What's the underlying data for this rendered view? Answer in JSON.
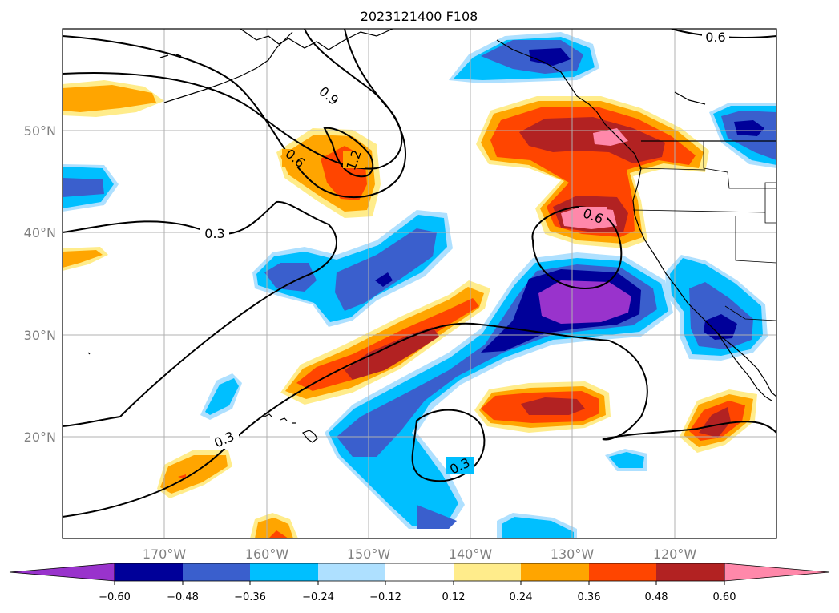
{
  "map": {
    "title": "2023121400 F108",
    "lat_labels": [
      "50°N",
      "40°N",
      "30°N",
      "20°N"
    ],
    "lon_labels": [
      "170°W",
      "160°W",
      "150°W",
      "140°W",
      "130°W",
      "120°W"
    ],
    "contour_labels": [
      "0.9",
      "1.2",
      "0.6",
      "0.3",
      "0.6",
      "0.3",
      "0.3",
      "0.6"
    ],
    "colors": {
      "neg_060": "#9933cc",
      "neg_048": "#000099",
      "neg_036": "#3a5fcd",
      "neg_024": "#00bfff",
      "neg_012": "#aee0ff",
      "zero": "#ffffff",
      "pos_012": "#ffec8b",
      "pos_024": "#ffa500",
      "pos_036": "#ff4500",
      "pos_048": "#b22222",
      "pos_060": "#ff88aa"
    }
  },
  "colorbar": {
    "ticks": [
      "−0.60",
      "−0.48",
      "−0.36",
      "−0.24",
      "−0.12",
      "0.12",
      "0.24",
      "0.36",
      "0.48",
      "0.60"
    ]
  }
}
